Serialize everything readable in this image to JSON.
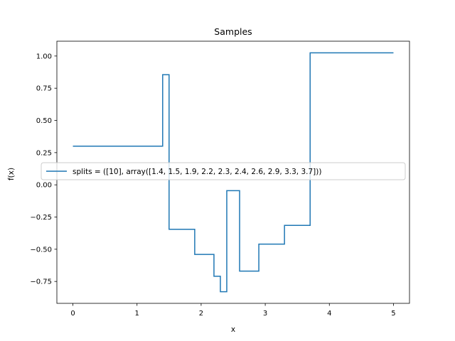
{
  "chart_data": {
    "type": "line",
    "drawstyle": "steps-post",
    "title": "Samples",
    "xlabel": "x",
    "ylabel": "f(x)",
    "xlim": [
      -0.25,
      5.25
    ],
    "ylim": [
      -0.92,
      1.115
    ],
    "xticks": [
      0,
      1,
      2,
      3,
      4,
      5
    ],
    "xtick_labels": [
      "0",
      "1",
      "2",
      "3",
      "4",
      "5"
    ],
    "yticks": [
      -0.75,
      -0.5,
      -0.25,
      0.0,
      0.25,
      0.5,
      0.75,
      1.0
    ],
    "ytick_labels": [
      "−0.75",
      "−0.50",
      "−0.25",
      "0.00",
      "0.25",
      "0.50",
      "0.75",
      "1.00"
    ],
    "grid": false,
    "legend_position": "center-left",
    "series": [
      {
        "name": "splits = ([10], array([1.4, 1.5, 1.9, 2.2, 2.3, 2.4, 2.6, 2.9, 3.3, 3.7]))",
        "color": "#1f77b4",
        "x": [
          0,
          1.4,
          1.5,
          1.9,
          2.2,
          2.3,
          2.4,
          2.6,
          2.9,
          3.3,
          3.7,
          5.0
        ],
        "y": [
          0.3,
          0.855,
          -0.345,
          -0.54,
          -0.71,
          -0.83,
          -0.045,
          -0.67,
          -0.46,
          -0.315,
          1.025,
          1.025
        ]
      }
    ]
  }
}
